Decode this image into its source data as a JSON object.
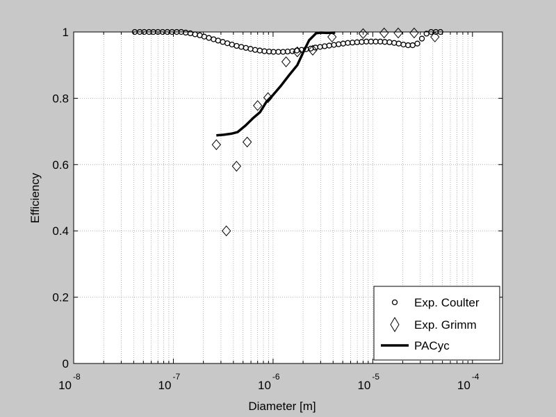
{
  "chart_data": {
    "type": "scatter",
    "xlabel": "Diameter [m]",
    "ylabel": "Efficiency",
    "xscale": "log",
    "xlim": [
      1e-08,
      0.0002
    ],
    "ylim": [
      0,
      1
    ],
    "x_ticks": [
      {
        "base": "10",
        "exp": "-8"
      },
      {
        "base": "10",
        "exp": "-7"
      },
      {
        "base": "10",
        "exp": "-6"
      },
      {
        "base": "10",
        "exp": "-5"
      },
      {
        "base": "10",
        "exp": "-4"
      }
    ],
    "y_ticks": [
      "0",
      "0.2",
      "0.4",
      "0.6",
      "0.8",
      "1"
    ],
    "grid": true,
    "legend_position": "bottom-right",
    "legend": [
      "Exp. Coulter",
      "Exp. Grimm",
      "PACyc"
    ],
    "series": [
      {
        "name": "Exp. Coulter",
        "marker": "circle",
        "x": [
          4.1e-08,
          4.6e-08,
          5.1e-08,
          5.7e-08,
          6.3e-08,
          7e-08,
          7.8e-08,
          8.7e-08,
          9.7e-08,
          1.08e-07,
          1.2e-07,
          1.33e-07,
          1.48e-07,
          1.65e-07,
          1.84e-07,
          2.04e-07,
          2.27e-07,
          2.53e-07,
          2.81e-07,
          3.13e-07,
          3.48e-07,
          3.87e-07,
          4.31e-07,
          4.8e-07,
          5.34e-07,
          5.94e-07,
          6.61e-07,
          7.36e-07,
          8.19e-07,
          9.12e-07,
          1.01e-06,
          1.13e-06,
          1.26e-06,
          1.4e-06,
          1.56e-06,
          1.73e-06,
          1.93e-06,
          2.14e-06,
          2.39e-06,
          2.66e-06,
          2.96e-06,
          3.29e-06,
          3.66e-06,
          4.08e-06,
          4.54e-06,
          5.05e-06,
          5.62e-06,
          6.25e-06,
          6.96e-06,
          7.74e-06,
          8.62e-06,
          9.59e-06,
          1.07e-05,
          1.19e-05,
          1.32e-05,
          1.47e-05,
          1.64e-05,
          1.82e-05,
          2.03e-05,
          2.26e-05,
          2.51e-05,
          2.8e-05,
          3.11e-05,
          3.46e-05,
          3.85e-05,
          4.29e-05,
          4.77e-05
        ],
        "y": [
          1.0,
          1.0,
          1.0,
          1.0,
          1.0,
          1.0,
          1.0,
          1.0,
          1.0,
          1.0,
          1.0,
          0.998,
          0.996,
          0.993,
          0.99,
          0.986,
          0.982,
          0.978,
          0.974,
          0.97,
          0.966,
          0.962,
          0.958,
          0.955,
          0.952,
          0.949,
          0.946,
          0.944,
          0.942,
          0.941,
          0.94,
          0.94,
          0.94,
          0.941,
          0.942,
          0.944,
          0.946,
          0.948,
          0.95,
          0.953,
          0.955,
          0.957,
          0.959,
          0.961,
          0.963,
          0.965,
          0.967,
          0.968,
          0.969,
          0.97,
          0.971,
          0.971,
          0.971,
          0.971,
          0.97,
          0.969,
          0.967,
          0.965,
          0.962,
          0.96,
          0.96,
          0.965,
          0.98,
          0.995,
          1.0,
          1.0,
          1.0
        ]
      },
      {
        "name": "Exp. Grimm",
        "marker": "diamond",
        "x": [
          2.7e-07,
          3.4e-07,
          4.3e-07,
          5.5e-07,
          7e-07,
          8.9e-07,
          1.35e-06,
          1.75e-06,
          2.5e-06,
          3.9e-06,
          8e-06,
          1.3e-05,
          1.8e-05,
          2.6e-05,
          4.2e-05
        ],
        "y": [
          0.66,
          0.4,
          0.595,
          0.668,
          0.778,
          0.802,
          0.91,
          0.94,
          0.945,
          0.985,
          0.995,
          0.997,
          0.997,
          0.997,
          0.985
        ]
      },
      {
        "name": "PACyc",
        "marker": "line",
        "x": [
          2.7e-07,
          3.2e-07,
          3.8e-07,
          4.4e-07,
          5.3e-07,
          6.3e-07,
          7.4e-07,
          8.6e-07,
          1e-06,
          1.2e-06,
          1.45e-06,
          1.75e-06,
          2e-06,
          2.3e-06,
          2.7e-06,
          3e-06,
          3.5e-06,
          4.2e-06
        ],
        "y": [
          0.688,
          0.69,
          0.693,
          0.698,
          0.718,
          0.74,
          0.758,
          0.79,
          0.81,
          0.838,
          0.87,
          0.9,
          0.938,
          0.975,
          0.996,
          0.998,
          0.997,
          0.998
        ]
      }
    ]
  }
}
